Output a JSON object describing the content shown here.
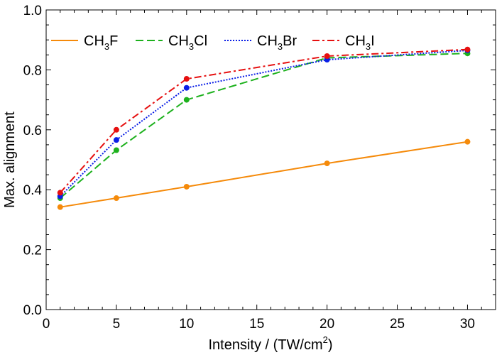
{
  "chart_data": {
    "type": "line",
    "title": "",
    "xlabel": "Intensity / (TW/cm²)",
    "xlabel_parts": {
      "main": "Intensity / (TW/cm",
      "sup": "2",
      "close": ")"
    },
    "ylabel": "Max. alignment",
    "xlim": [
      0,
      32
    ],
    "ylim": [
      0.0,
      1.0
    ],
    "xticks": [
      0,
      5,
      10,
      15,
      20,
      25,
      30
    ],
    "yticks": [
      0.0,
      0.2,
      0.4,
      0.6,
      0.8,
      1.0
    ],
    "xtick_labels": [
      "0",
      "5",
      "10",
      "15",
      "20",
      "25",
      "30"
    ],
    "ytick_labels": [
      "0.0",
      "0.2",
      "0.4",
      "0.6",
      "0.8",
      "1.0"
    ],
    "x": [
      1,
      5,
      10,
      20,
      30
    ],
    "legend_position": "top",
    "series": [
      {
        "name": "CH3F",
        "label_prefix": "CH",
        "label_sub": "3",
        "label_suffix": "F",
        "color": "#f58a0a",
        "dash": "solid",
        "values": [
          0.342,
          0.372,
          0.41,
          0.488,
          0.56
        ]
      },
      {
        "name": "CH3Cl",
        "label_prefix": "CH",
        "label_sub": "3",
        "label_suffix": "Cl",
        "color": "#1db11d",
        "dash": "dashed",
        "values": [
          0.372,
          0.532,
          0.7,
          0.84,
          0.855
        ]
      },
      {
        "name": "CH3Br",
        "label_prefix": "CH",
        "label_sub": "3",
        "label_suffix": "Br",
        "color": "#0a1ee6",
        "dash": "dotted",
        "values": [
          0.378,
          0.566,
          0.74,
          0.834,
          0.865
        ]
      },
      {
        "name": "CH3I",
        "label_prefix": "CH",
        "label_sub": "3",
        "label_suffix": "I",
        "color": "#e61010",
        "dash": "dash-dot",
        "values": [
          0.39,
          0.6,
          0.77,
          0.846,
          0.868
        ]
      }
    ]
  }
}
